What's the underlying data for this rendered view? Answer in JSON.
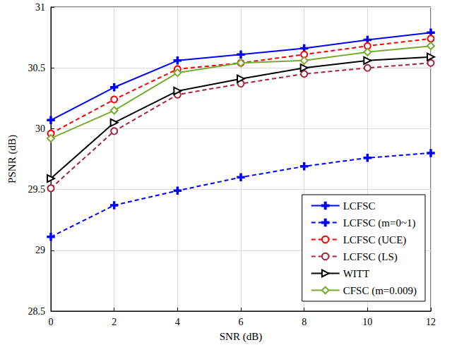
{
  "chart_data": {
    "type": "line",
    "x_label": "SNR (dB)",
    "y_label": "PSNR (dB)",
    "x": [
      0,
      2,
      4,
      6,
      8,
      10,
      12
    ],
    "xlim": [
      0,
      12
    ],
    "xticks": [
      0,
      2,
      4,
      6,
      8,
      10,
      12
    ],
    "ylim": [
      28.5,
      31
    ],
    "yticks": [
      28.5,
      29,
      29.5,
      30,
      30.5,
      31
    ],
    "grid": true,
    "legend": "lower right",
    "series": [
      {
        "name": "LCFSC",
        "color": "#0000ff",
        "marker": "plus",
        "line_style": "solid",
        "values": [
          30.07,
          30.34,
          30.56,
          30.61,
          30.66,
          30.73,
          30.79
        ]
      },
      {
        "name": "LCFSC (m=0~1)",
        "color": "#0000ff",
        "marker": "plus",
        "line_style": "dashed",
        "values": [
          29.11,
          29.37,
          29.49,
          29.6,
          29.69,
          29.76,
          29.8
        ]
      },
      {
        "name": "LCFSC (UCE)",
        "color": "#ff0000",
        "marker": "circle",
        "line_style": "dashed",
        "values": [
          29.96,
          30.24,
          30.49,
          30.54,
          30.61,
          30.68,
          30.74
        ]
      },
      {
        "name": "LCFSC (LS)",
        "color": "#a2243c",
        "marker": "circle",
        "line_style": "dashed",
        "values": [
          29.51,
          29.98,
          30.28,
          30.37,
          30.45,
          30.5,
          30.54
        ]
      },
      {
        "name": "WITT",
        "color": "#000000",
        "marker": "triangle-right",
        "line_style": "solid",
        "values": [
          29.59,
          30.05,
          30.31,
          30.41,
          30.5,
          30.56,
          30.59
        ]
      },
      {
        "name": "CFSC (m=0.009)",
        "color": "#77ac30",
        "marker": "diamond",
        "line_style": "solid",
        "values": [
          29.92,
          30.15,
          30.46,
          30.54,
          30.56,
          30.63,
          30.68
        ]
      }
    ]
  }
}
